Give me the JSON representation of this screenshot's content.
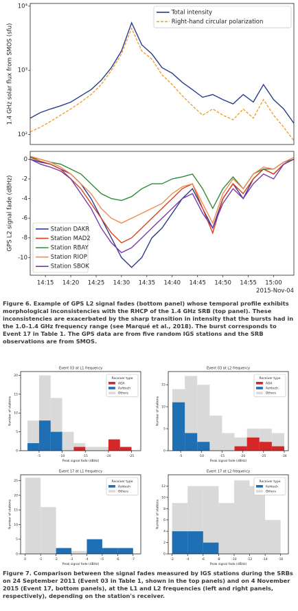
{
  "chart_data": [
    {
      "type": "line",
      "ylabel": "1.4 GHz solar flux from SMOS (sfu)",
      "log_y": true,
      "legend": "upper right",
      "x": [
        852,
        854,
        856,
        858,
        860,
        862,
        864,
        866,
        868,
        870,
        872,
        874,
        876,
        878,
        880,
        882,
        884,
        886,
        888,
        890,
        892,
        894,
        896,
        898,
        900,
        902,
        904
      ],
      "xlim": [
        852,
        904
      ],
      "ylim": [
        70,
        11000
      ],
      "yticks": [
        {
          "value": 100,
          "label": "10²"
        },
        {
          "value": 1000,
          "label": "10³"
        },
        {
          "value": 10000,
          "label": "10⁴"
        }
      ],
      "series": [
        {
          "name": "Total intensity",
          "color": "#2a3a8c",
          "dash": false,
          "values": [
            180,
            220,
            250,
            280,
            320,
            400,
            500,
            700,
            1100,
            2000,
            5500,
            2500,
            1800,
            1100,
            900,
            650,
            500,
            380,
            420,
            350,
            300,
            420,
            320,
            600,
            350,
            250,
            150
          ]
        },
        {
          "name": "Right-hand circular polarization",
          "color": "#f0a030",
          "dash": true,
          "values": [
            110,
            130,
            160,
            200,
            250,
            320,
            420,
            600,
            1000,
            1800,
            4500,
            2000,
            1500,
            850,
            600,
            400,
            280,
            200,
            250,
            200,
            170,
            250,
            180,
            350,
            200,
            130,
            80
          ]
        }
      ]
    },
    {
      "type": "line",
      "ylabel": "GPS L2 signal fade (dBHz)",
      "annotation": "2015-Nov-04",
      "log_y": false,
      "legend": "lower left",
      "x": [
        852,
        854,
        856,
        858,
        860,
        862,
        864,
        866,
        868,
        870,
        872,
        874,
        876,
        878,
        880,
        882,
        884,
        886,
        888,
        890,
        892,
        894,
        896,
        898,
        900,
        902,
        904
      ],
      "xlim": [
        852,
        904
      ],
      "ylim": [
        -11.8,
        0.8
      ],
      "xticks": [
        {
          "value": 855,
          "label": "14:15"
        },
        {
          "value": 860,
          "label": "14:20"
        },
        {
          "value": 865,
          "label": "14:25"
        },
        {
          "value": 870,
          "label": "14:30"
        },
        {
          "value": 875,
          "label": "14:35"
        },
        {
          "value": 880,
          "label": "14:40"
        },
        {
          "value": 885,
          "label": "14:45"
        },
        {
          "value": 890,
          "label": "14:50"
        },
        {
          "value": 895,
          "label": "14:55"
        },
        {
          "value": 900,
          "label": "15:00"
        }
      ],
      "yticks": [
        0,
        -2,
        -4,
        -6,
        -8,
        -10
      ],
      "series": [
        {
          "name": "Station DAKR",
          "color": "#2a3a8c",
          "dash": false,
          "values": [
            0,
            -0.3,
            -0.5,
            -1,
            -1.5,
            -2.5,
            -4,
            -6,
            -8,
            -10,
            -11,
            -10,
            -8,
            -7,
            -5.5,
            -4,
            -3,
            -5,
            -7,
            -4,
            -2.5,
            -4,
            -2,
            -1,
            -1.5,
            -0.5,
            0
          ]
        },
        {
          "name": "Station MAD2",
          "color": "#d8401e",
          "dash": false,
          "values": [
            0.2,
            -0.2,
            -0.5,
            -1,
            -2,
            -3,
            -4.5,
            -6,
            -7.5,
            -8.5,
            -8,
            -7,
            -6,
            -5,
            -4,
            -3,
            -2.5,
            -5,
            -7.5,
            -4,
            -2.5,
            -3.5,
            -2,
            -1,
            -1.5,
            -0.5,
            0
          ]
        },
        {
          "name": "Station RBAY",
          "color": "#2e8a3a",
          "dash": false,
          "values": [
            0.2,
            0,
            -0.3,
            -0.5,
            -1,
            -1.5,
            -2.5,
            -3.5,
            -4,
            -4.2,
            -3.8,
            -3,
            -2.5,
            -2.5,
            -2,
            -1.8,
            -1.5,
            -3,
            -5,
            -3,
            -1.8,
            -3,
            -1.5,
            -1,
            -1,
            -0.3,
            0
          ]
        },
        {
          "name": "Station RIOP",
          "color": "#f08a50",
          "dash": false,
          "values": [
            0.3,
            0,
            -0.3,
            -0.8,
            -1.5,
            -2.5,
            -3.5,
            -5,
            -6,
            -6.5,
            -6,
            -5.5,
            -5,
            -4.5,
            -3.5,
            -2.8,
            -2.5,
            -4.5,
            -6.5,
            -3.5,
            -2,
            -3,
            -1.5,
            -0.8,
            -1,
            -0.3,
            0.2
          ]
        },
        {
          "name": "Station SBOK",
          "color": "#7a3aa8",
          "dash": false,
          "values": [
            0,
            -0.5,
            -0.8,
            -1.2,
            -2,
            -3.5,
            -5,
            -7,
            -8.5,
            -9.5,
            -9,
            -8,
            -7,
            -6,
            -5,
            -4,
            -3.5,
            -5.5,
            -7,
            -4.5,
            -3,
            -4,
            -2.5,
            -1.5,
            -2,
            -0.5,
            0
          ]
        }
      ]
    },
    {
      "type": "histogram",
      "title": "Event 03 at L1 frequency",
      "xlabel": "Peak signal fade (dBHz)",
      "ylabel": "Number of stations",
      "legend": "upper right",
      "legend_title": "Receiver type",
      "bins": [
        -2.5,
        -5,
        -7.5,
        -10,
        -12.5,
        -15,
        -17.5,
        -20,
        -22.5,
        -25
      ],
      "xlim": [
        -1,
        -27
      ],
      "ylim": [
        0,
        21
      ],
      "xticks": [
        -5,
        -10,
        -15,
        -20,
        -25
      ],
      "yticks": [
        0,
        5,
        10,
        15,
        20
      ],
      "series": [
        {
          "name": "AOA",
          "color": "#d62728",
          "values": [
            0,
            0,
            0,
            0,
            1,
            0,
            0,
            3,
            1
          ]
        },
        {
          "name": "Ashtech",
          "color": "#1f6fb4",
          "values": [
            2,
            8,
            5,
            0,
            0,
            0,
            0,
            0,
            0
          ]
        },
        {
          "name": "Others",
          "color": "#d9d9d9",
          "values": [
            8,
            20,
            14,
            5,
            2,
            1,
            1,
            2,
            0
          ]
        }
      ]
    },
    {
      "type": "histogram",
      "title": "Event 03 at L2 frequency",
      "xlabel": "Peak signal fade (dBHz)",
      "ylabel": "Number of stations",
      "legend": "upper right",
      "legend_title": "Receiver type",
      "bins": [
        -3,
        -6,
        -9,
        -12,
        -15,
        -18,
        -21,
        -24,
        -27,
        -30
      ],
      "xlim": [
        -2,
        -31
      ],
      "ylim": [
        0,
        18
      ],
      "xticks": [
        -5,
        -10,
        -15,
        -20,
        -25,
        -30
      ],
      "yticks": [
        0,
        5,
        10,
        15
      ],
      "series": [
        {
          "name": "AOA",
          "color": "#d62728",
          "values": [
            0,
            0,
            0,
            0,
            0,
            1,
            3,
            2,
            1
          ]
        },
        {
          "name": "Ashtech",
          "color": "#1f6fb4",
          "values": [
            11,
            4,
            2,
            0,
            0,
            0,
            0,
            0,
            0
          ]
        },
        {
          "name": "Others",
          "color": "#d9d9d9",
          "values": [
            14,
            17,
            15,
            8,
            4,
            3,
            5,
            5,
            4
          ]
        }
      ]
    },
    {
      "type": "histogram",
      "title": "Event 17 at L1 frequency",
      "xlabel": "Peak signal fade (dBHz)",
      "ylabel": "Number of stations",
      "legend": "upper right",
      "legend_title": "Receiver type",
      "bins": [
        0,
        -1,
        -2,
        -3,
        -4,
        -5,
        -6,
        -7
      ],
      "xlim": [
        0.3,
        -7.5
      ],
      "ylim": [
        0,
        27
      ],
      "xticks": [
        0,
        -1,
        -2,
        -3,
        -4,
        -5,
        -6,
        -7
      ],
      "yticks": [
        0,
        5,
        10,
        15,
        20,
        25
      ],
      "series": [
        {
          "name": "Ashtech",
          "color": "#1f6fb4",
          "values": [
            0,
            0,
            2,
            0,
            5,
            2,
            2
          ]
        },
        {
          "name": "Others",
          "color": "#d9d9d9",
          "values": [
            26,
            16,
            2,
            1,
            5,
            2,
            2
          ]
        }
      ]
    },
    {
      "type": "histogram",
      "title": "Event 17 at L2 frequency",
      "xlabel": "Peak signal fade (dBHz)",
      "ylabel": "Number of stations",
      "legend": "upper right",
      "legend_title": "Receiver type",
      "bins": [
        -2,
        -4,
        -6,
        -8,
        -10,
        -12,
        -14,
        -16
      ],
      "xlim": [
        -1.5,
        -17
      ],
      "ylim": [
        0,
        14
      ],
      "xticks": [
        -2,
        -4,
        -6,
        -8,
        -10,
        -12,
        -14,
        -16
      ],
      "yticks": [
        0,
        2,
        4,
        6,
        8,
        10,
        12
      ],
      "series": [
        {
          "name": "Ashtech",
          "color": "#1f6fb4",
          "values": [
            4,
            4,
            2,
            0,
            0,
            0,
            0
          ]
        },
        {
          "name": "Others",
          "color": "#d9d9d9",
          "values": [
            9,
            12,
            12,
            9,
            13,
            12,
            6
          ]
        }
      ]
    }
  ],
  "captions": [
    "Figure 6. Example of GPS L2 signal fades (bottom panel) whose temporal profile exhibits morphological inconsistencies with the RHCP of the 1.4 GHz SRB (top panel). These inconsistencies are exacerbated by the sharp transition in intensity that the bursts had in the 1.0–1.4 GHz frequency range (see Marqué et al., 2018). The burst corresponds to Event 17 in Table 1. The GPS data are from five random IGS stations and the SRB observations are from SMOS.",
    "Figure 7. Comparison between the signal fades measured by IGS stations during the SRBs on 24 September 2011 (Event 03 in Table 1, shown in the top panels) and on 4 November 2015 (Event 17, bottom panels), at the L1 and L2 frequencies (left and right panels, respectively), depending on the station's receiver."
  ]
}
